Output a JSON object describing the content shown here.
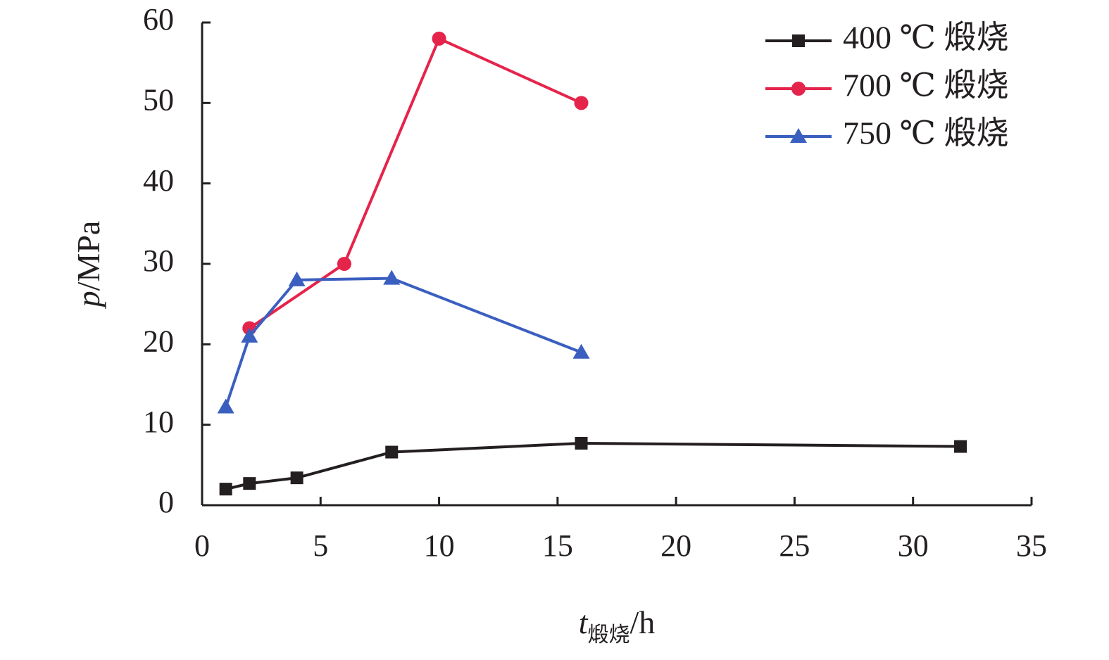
{
  "chart_data": {
    "type": "line",
    "xlabel": {
      "var": "t",
      "sub": "煅烧",
      "unit": "/h"
    },
    "ylabel": {
      "var": "p",
      "unit": "/MPa"
    },
    "xlim": [
      0,
      35
    ],
    "ylim": [
      0,
      60
    ],
    "xticks": [
      0,
      5,
      10,
      15,
      20,
      25,
      30,
      35
    ],
    "yticks": [
      0,
      10,
      20,
      30,
      40,
      50,
      60
    ],
    "grid": false,
    "legend_position": "top-right",
    "series": [
      {
        "name": "400 ℃ 煅烧",
        "color": "#231f20",
        "marker": "square",
        "x": [
          1,
          2,
          4,
          8,
          16,
          32
        ],
        "y": [
          2.0,
          2.7,
          3.4,
          6.6,
          7.7,
          7.3
        ]
      },
      {
        "name": "700 ℃ 煅烧",
        "color": "#e5244b",
        "marker": "circle",
        "x": [
          2,
          6,
          10,
          16
        ],
        "y": [
          22.0,
          30.0,
          58.0,
          50.0
        ]
      },
      {
        "name": "750 ℃ 煅烧",
        "color": "#3b5fbf",
        "marker": "triangle",
        "x": [
          1,
          2,
          4,
          8,
          16
        ],
        "y": [
          12.2,
          21.0,
          28.0,
          28.2,
          19.0
        ]
      }
    ]
  }
}
